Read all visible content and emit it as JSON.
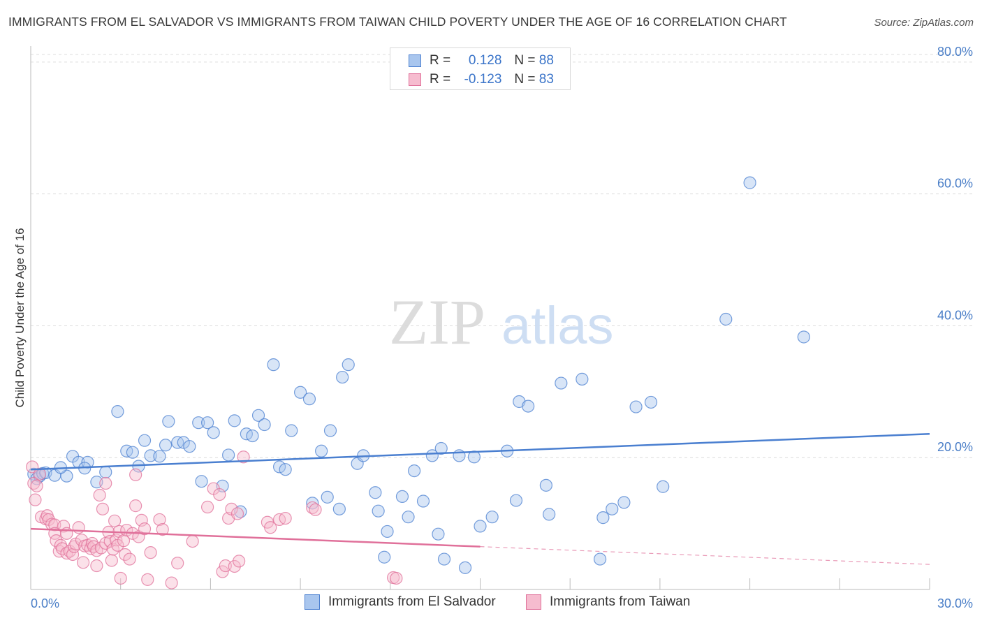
{
  "title": "IMMIGRANTS FROM EL SALVADOR VS IMMIGRANTS FROM TAIWAN CHILD POVERTY UNDER THE AGE OF 16 CORRELATION CHART",
  "source": "Source: ZipAtlas.com",
  "watermark": {
    "zip": "ZIP",
    "atlas": "atlas"
  },
  "legend": {
    "r_label": "R =",
    "n_label": "N =",
    "rows": [
      {
        "r": "0.128",
        "n": "88"
      },
      {
        "r": "-0.123",
        "n": "83"
      }
    ]
  },
  "chart_data": {
    "type": "scatter",
    "title": "IMMIGRANTS FROM EL SALVADOR VS IMMIGRANTS FROM TAIWAN CHILD POVERTY UNDER THE AGE OF 16 CORRELATION CHART",
    "xlabel": "",
    "ylabel": "Child Poverty Under the Age of 16",
    "xlim": [
      0,
      30
    ],
    "ylim": [
      0,
      82
    ],
    "x_tick_labels": [
      "0.0%",
      "30.0%"
    ],
    "y_ticks": [
      {
        "value": 20,
        "label": "20.0%"
      },
      {
        "value": 40,
        "label": "40.0%"
      },
      {
        "value": 60,
        "label": "60.0%"
      },
      {
        "value": 80,
        "label": "80.0%"
      }
    ],
    "grid": true,
    "legend_position": "bottom-center",
    "series": [
      {
        "name": "Immigrants from El Salvador",
        "color": "#4a7fd0",
        "fill": "#a9c6ee",
        "trend": {
          "x0": 0,
          "y0": 18.2,
          "x1": 30,
          "y1": 23.6
        },
        "points": [
          [
            0.1,
            17.5
          ],
          [
            0.2,
            16.8
          ],
          [
            0.3,
            17.2
          ],
          [
            0.4,
            17.6
          ],
          [
            0.5,
            17.7
          ],
          [
            0.8,
            17.3
          ],
          [
            1.2,
            17.2
          ],
          [
            1.0,
            18.5
          ],
          [
            1.4,
            20.2
          ],
          [
            1.6,
            19.3
          ],
          [
            1.9,
            19.3
          ],
          [
            1.8,
            18.4
          ],
          [
            2.2,
            16.3
          ],
          [
            2.5,
            17.8
          ],
          [
            2.9,
            27.0
          ],
          [
            3.2,
            21.0
          ],
          [
            3.4,
            20.8
          ],
          [
            3.6,
            18.7
          ],
          [
            3.8,
            22.6
          ],
          [
            4.0,
            20.3
          ],
          [
            4.3,
            20.2
          ],
          [
            4.5,
            21.9
          ],
          [
            4.6,
            25.5
          ],
          [
            4.9,
            22.3
          ],
          [
            5.1,
            22.3
          ],
          [
            5.3,
            21.7
          ],
          [
            5.6,
            25.3
          ],
          [
            5.7,
            16.4
          ],
          [
            5.9,
            25.3
          ],
          [
            6.1,
            23.8
          ],
          [
            6.4,
            15.7
          ],
          [
            6.6,
            20.4
          ],
          [
            6.8,
            25.6
          ],
          [
            7.0,
            11.8
          ],
          [
            7.2,
            23.6
          ],
          [
            7.4,
            23.3
          ],
          [
            7.6,
            26.4
          ],
          [
            7.8,
            25.0
          ],
          [
            8.1,
            34.1
          ],
          [
            8.3,
            18.6
          ],
          [
            8.5,
            18.2
          ],
          [
            8.7,
            24.1
          ],
          [
            9.0,
            29.9
          ],
          [
            9.3,
            28.9
          ],
          [
            9.4,
            13.1
          ],
          [
            9.7,
            21.0
          ],
          [
            9.9,
            14.0
          ],
          [
            10.0,
            24.1
          ],
          [
            10.3,
            12.2
          ],
          [
            10.4,
            32.2
          ],
          [
            10.6,
            34.1
          ],
          [
            10.9,
            19.1
          ],
          [
            11.1,
            20.3
          ],
          [
            11.5,
            14.7
          ],
          [
            11.6,
            11.9
          ],
          [
            11.9,
            8.8
          ],
          [
            11.8,
            4.9
          ],
          [
            12.4,
            14.1
          ],
          [
            12.6,
            11.0
          ],
          [
            12.8,
            18.0
          ],
          [
            13.1,
            13.4
          ],
          [
            13.4,
            20.3
          ],
          [
            13.6,
            8.4
          ],
          [
            13.7,
            21.4
          ],
          [
            13.8,
            4.6
          ],
          [
            14.3,
            20.3
          ],
          [
            14.5,
            3.3
          ],
          [
            14.8,
            20.1
          ],
          [
            15.0,
            9.6
          ],
          [
            15.4,
            11.0
          ],
          [
            15.9,
            21.0
          ],
          [
            16.2,
            13.5
          ],
          [
            16.3,
            28.5
          ],
          [
            16.6,
            27.8
          ],
          [
            17.2,
            15.8
          ],
          [
            17.3,
            11.4
          ],
          [
            17.7,
            31.3
          ],
          [
            18.4,
            31.9
          ],
          [
            19.0,
            4.6
          ],
          [
            19.1,
            10.9
          ],
          [
            19.4,
            12.2
          ],
          [
            19.8,
            13.2
          ],
          [
            20.2,
            27.7
          ],
          [
            20.7,
            28.4
          ],
          [
            21.1,
            15.6
          ],
          [
            23.2,
            41.0
          ],
          [
            24.0,
            61.7
          ],
          [
            25.8,
            38.3
          ]
        ]
      },
      {
        "name": "Immigrants from Taiwan",
        "color": "#e0709a",
        "fill": "#f6bccf",
        "trend": {
          "x0": 0,
          "y0": 9.2,
          "x1": 15,
          "y1": 6.5,
          "dash_to_x": 30,
          "dash_to_y": 3.8
        },
        "points": [
          [
            0.05,
            18.6
          ],
          [
            0.1,
            16.1
          ],
          [
            0.15,
            13.6
          ],
          [
            0.2,
            15.7
          ],
          [
            0.3,
            17.5
          ],
          [
            0.35,
            11.0
          ],
          [
            0.5,
            10.7
          ],
          [
            0.55,
            11.2
          ],
          [
            0.6,
            10.6
          ],
          [
            0.7,
            9.9
          ],
          [
            0.8,
            9.8
          ],
          [
            0.8,
            8.5
          ],
          [
            0.85,
            7.4
          ],
          [
            0.95,
            5.8
          ],
          [
            1.0,
            6.7
          ],
          [
            1.05,
            6.2
          ],
          [
            1.1,
            9.6
          ],
          [
            1.2,
            8.5
          ],
          [
            1.2,
            5.5
          ],
          [
            1.3,
            5.8
          ],
          [
            1.4,
            5.3
          ],
          [
            1.45,
            6.5
          ],
          [
            1.5,
            6.9
          ],
          [
            1.6,
            9.4
          ],
          [
            1.7,
            7.5
          ],
          [
            1.75,
            4.1
          ],
          [
            1.8,
            6.6
          ],
          [
            1.9,
            6.7
          ],
          [
            2.0,
            6.2
          ],
          [
            2.05,
            7.0
          ],
          [
            2.1,
            6.5
          ],
          [
            2.2,
            5.9
          ],
          [
            2.2,
            3.6
          ],
          [
            2.3,
            14.3
          ],
          [
            2.35,
            6.3
          ],
          [
            2.4,
            12.2
          ],
          [
            2.5,
            16.1
          ],
          [
            2.5,
            7.0
          ],
          [
            2.6,
            8.7
          ],
          [
            2.65,
            7.3
          ],
          [
            2.7,
            4.4
          ],
          [
            2.75,
            6.1
          ],
          [
            2.8,
            10.4
          ],
          [
            2.85,
            7.5
          ],
          [
            2.9,
            6.7
          ],
          [
            2.95,
            8.8
          ],
          [
            3.0,
            1.7
          ],
          [
            3.1,
            7.4
          ],
          [
            3.15,
            5.3
          ],
          [
            3.2,
            9.0
          ],
          [
            3.3,
            4.6
          ],
          [
            3.4,
            8.5
          ],
          [
            3.5,
            17.4
          ],
          [
            3.5,
            12.7
          ],
          [
            3.6,
            8.0
          ],
          [
            3.7,
            10.5
          ],
          [
            3.8,
            9.2
          ],
          [
            3.9,
            1.5
          ],
          [
            4.0,
            5.6
          ],
          [
            4.3,
            10.6
          ],
          [
            4.4,
            9.1
          ],
          [
            4.7,
            1.0
          ],
          [
            4.9,
            4.0
          ],
          [
            5.4,
            7.3
          ],
          [
            5.9,
            12.5
          ],
          [
            6.1,
            15.3
          ],
          [
            6.3,
            14.4
          ],
          [
            6.4,
            2.7
          ],
          [
            6.5,
            3.6
          ],
          [
            6.6,
            10.8
          ],
          [
            6.7,
            12.2
          ],
          [
            6.8,
            3.5
          ],
          [
            6.9,
            11.5
          ],
          [
            6.95,
            4.3
          ],
          [
            7.1,
            20.1
          ],
          [
            7.9,
            10.2
          ],
          [
            8.0,
            9.4
          ],
          [
            8.3,
            10.6
          ],
          [
            8.5,
            10.8
          ],
          [
            9.4,
            12.4
          ],
          [
            9.5,
            12.1
          ],
          [
            12.1,
            1.8
          ],
          [
            12.2,
            1.7
          ]
        ]
      }
    ]
  },
  "bottom_legend": [
    "Immigrants from El Salvador",
    "Immigrants from Taiwan"
  ]
}
